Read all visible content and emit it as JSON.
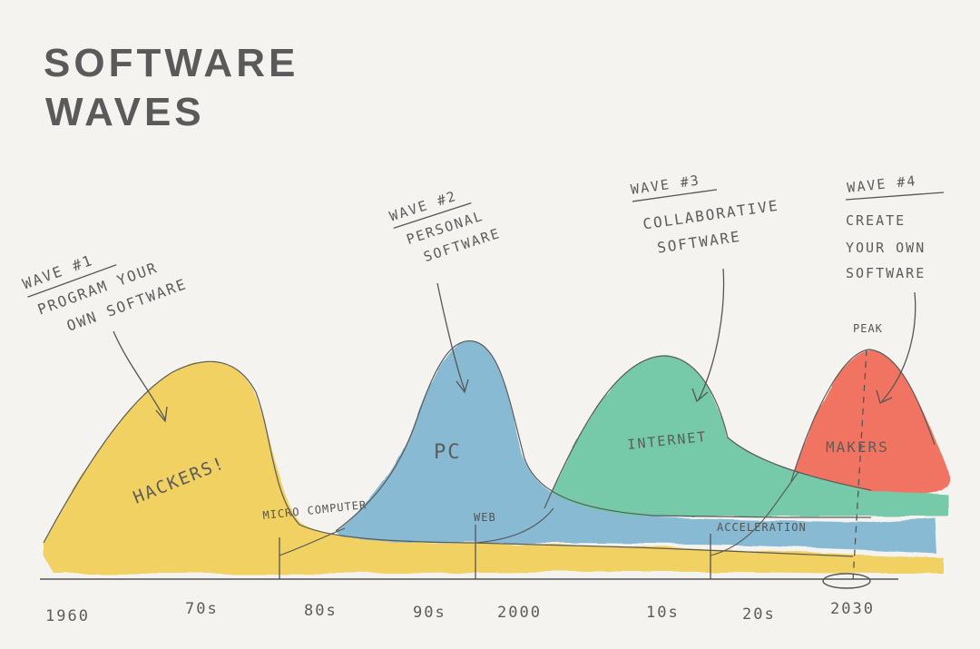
{
  "title": {
    "line1": "SOFTWARE",
    "line2": "WAVES"
  },
  "colors": {
    "background": "#f4f3f0",
    "wave1": "#f0cf55",
    "wave2": "#7fb6d2",
    "wave3": "#6cc7a4",
    "wave4": "#f06a55",
    "ink": "#555555"
  },
  "waves": [
    {
      "id": "wave1",
      "header": "WAVE #1",
      "desc1": "PROGRAM YOUR",
      "desc2": "OWN SOFTWARE",
      "label": "HACKERS!"
    },
    {
      "id": "wave2",
      "header": "WAVE #2",
      "desc1": "PERSONAL",
      "desc2": "SOFTWARE",
      "label": "PC"
    },
    {
      "id": "wave3",
      "header": "WAVE #3",
      "desc1": "COLLABORATIVE",
      "desc2": "SOFTWARE",
      "label": "INTERNET"
    },
    {
      "id": "wave4",
      "header": "WAVE #4",
      "desc1": "CREATE",
      "desc2": "YOUR OWN",
      "desc3": "SOFTWARE",
      "label": "MAKERS"
    }
  ],
  "markers": {
    "micro": "MICRO COMPUTER",
    "web": "WEB",
    "acceleration": "ACCELERATION",
    "peak": "PEAK"
  },
  "axis": {
    "ticks": [
      "1960",
      "70s",
      "80s",
      "90s",
      "2000",
      "10s",
      "20s",
      "2030"
    ]
  }
}
